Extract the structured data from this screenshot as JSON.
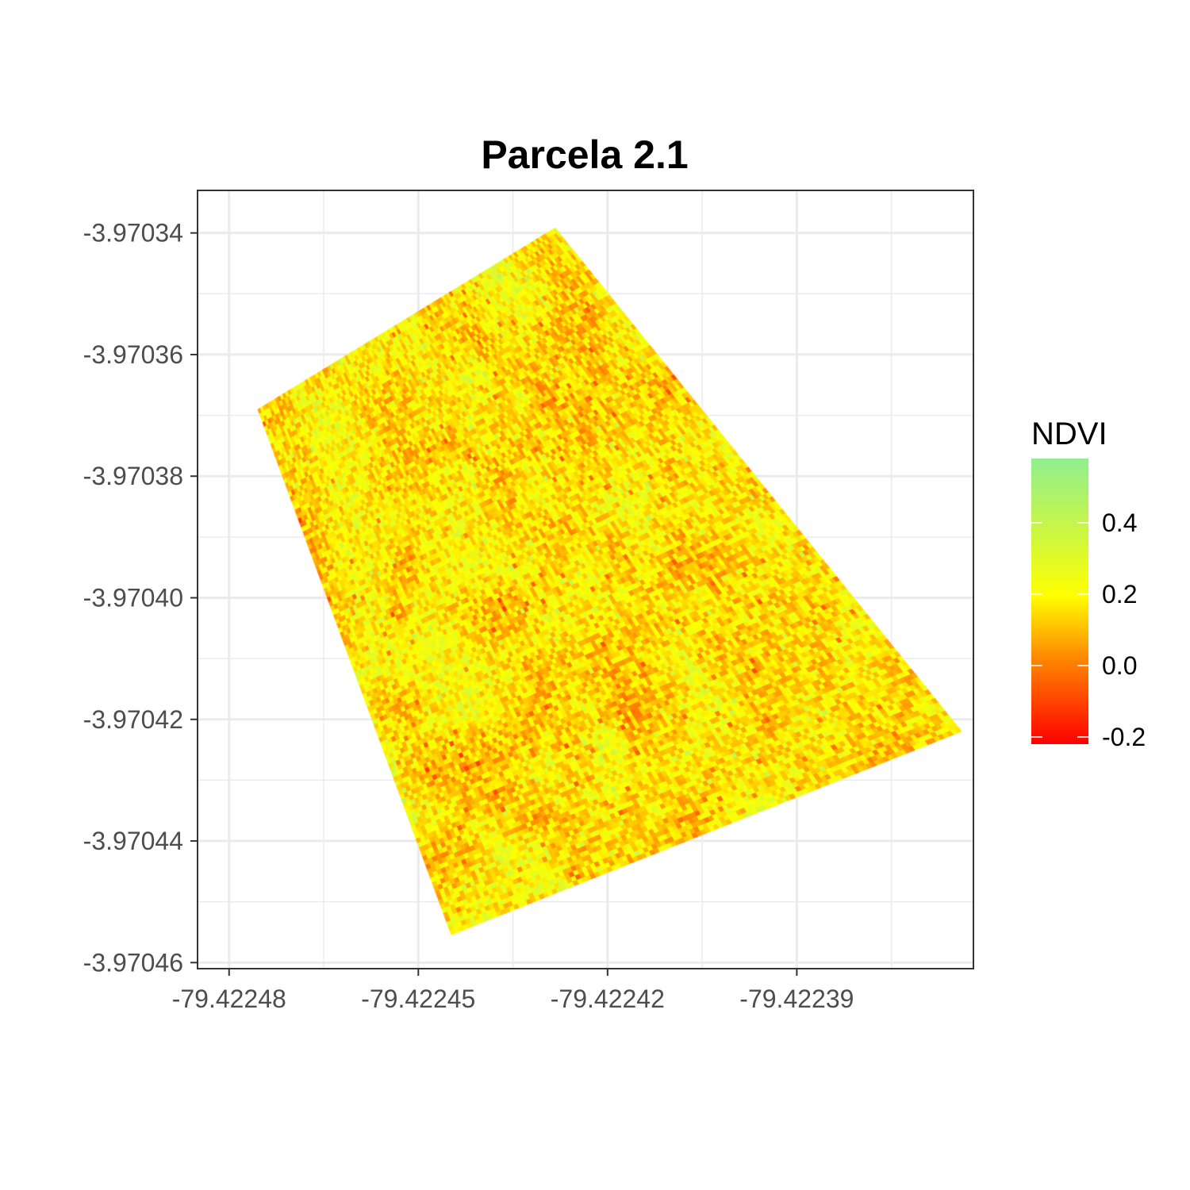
{
  "chart_data": {
    "type": "heatmap",
    "title": "Parcela 2.1",
    "xlabel": "",
    "ylabel": "",
    "x_ticks": [
      "-79.42248",
      "-79.42245",
      "-79.42242",
      "-79.42239"
    ],
    "x_tick_values": [
      -79.42248,
      -79.42245,
      -79.42242,
      -79.42239
    ],
    "y_ticks": [
      "-3.97034",
      "-3.97036",
      "-3.97038",
      "-3.97040",
      "-3.97042",
      "-3.97044",
      "-3.97046"
    ],
    "y_tick_values": [
      -3.97034,
      -3.97036,
      -3.97038,
      -3.9704,
      -3.97042,
      -3.97044,
      -3.97046
    ],
    "xlim": [
      -79.422485,
      -79.422362
    ],
    "ylim": [
      -3.970461,
      -3.970333
    ],
    "grid": true,
    "parcel_corners": [
      {
        "x": -79.4224283,
        "y": -3.9703391
      },
      {
        "x": -79.4223638,
        "y": -3.970422
      },
      {
        "x": -79.4224448,
        "y": -3.9704555
      },
      {
        "x": -79.4224755,
        "y": -3.970369
      }
    ],
    "legend": {
      "title": "NDVI",
      "position": "right",
      "labels": [
        "0.4",
        "0.2",
        "0.0",
        "-0.2"
      ],
      "values": [
        0.4,
        0.2,
        0.0,
        -0.2
      ],
      "range": [
        -0.22,
        0.58
      ],
      "colors": {
        "low": "#ff0000",
        "mid_low": "#ff8c00",
        "mid": "#ffff00",
        "high": "#90ee90"
      }
    },
    "value_range_observed": [
      -0.2,
      0.5
    ]
  }
}
